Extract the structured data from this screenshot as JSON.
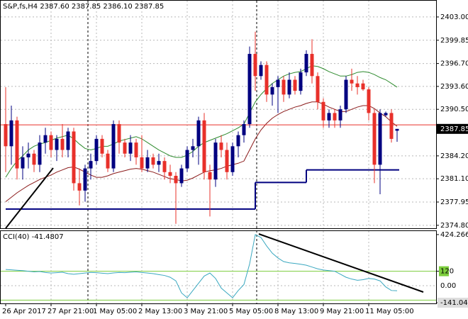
{
  "chart_data": [
    {
      "type": "candlestick",
      "title": "S&P,fs,H4  2387.60 2387.85 2386.10 2387.85",
      "categories": [
        "26 Apr 2017",
        null,
        null,
        null,
        null,
        null,
        null,
        null,
        "27 Apr 21:00",
        null,
        null,
        null,
        null,
        null,
        null,
        null,
        "1 May 05:00",
        null,
        null,
        null,
        null,
        null,
        null,
        null,
        "2 May 13:00",
        null,
        null,
        null,
        null,
        null,
        null,
        null,
        "3 May 21:00",
        null,
        null,
        null,
        null,
        null,
        null,
        null,
        "5 May 05:00",
        null,
        null,
        null,
        null,
        null,
        null,
        null,
        "8 May 13:00",
        null,
        null,
        null,
        null,
        null,
        null,
        null,
        "9 May 21:00",
        null,
        null,
        null,
        null,
        null,
        null,
        null,
        "11 May 05:00",
        null,
        null,
        null,
        null,
        null
      ],
      "open": [
        2388.5,
        2385.5,
        2389,
        2382.5,
        2384,
        2384.5,
        2383,
        2386,
        2387,
        2385,
        2386.5,
        2385,
        2387.5,
        2380.5,
        2379.5,
        2382.5,
        2383.5,
        2386.5,
        2384.5,
        2382.5,
        2388.5,
        2386,
        2384.5,
        2386,
        2384,
        2382.5,
        2384,
        2383,
        2383.5,
        2382,
        2381.5,
        2380.5,
        2382.5,
        2385,
        2385.5,
        2389,
        2382,
        2381,
        2386,
        2385,
        2382,
        2385.5,
        2387,
        2388.5,
        2398,
        2395,
        2396.5,
        2392.5,
        2393.5,
        2394.5,
        2392.5,
        2394.5,
        2393,
        2395.5,
        2398,
        2395,
        2391.5,
        2389,
        2390,
        2389,
        2390.5,
        2394.5,
        2394,
        2394,
        2393.2,
        2390,
        2383,
        2389.7,
        2390,
        2387.6
      ],
      "high": [
        2393.5,
        2391,
        2389.5,
        2385.5,
        2386,
        2385,
        2387,
        2388,
        2387.5,
        2387,
        2388.5,
        2388,
        2388,
        2382.5,
        2383,
        2384.5,
        2387,
        2387,
        2385,
        2389,
        2389,
        2386.5,
        2387,
        2386.5,
        2387,
        2385,
        2384.5,
        2384.5,
        2384,
        2383,
        2382,
        2383,
        2385.5,
        2386.5,
        2389.5,
        2390,
        2383,
        2386.5,
        2387,
        2386,
        2386,
        2387.5,
        2389,
        2399,
        2401,
        2397,
        2397,
        2394,
        2395,
        2395,
        2395.5,
        2395,
        2396,
        2398.5,
        2400,
        2395.5,
        2392,
        2390.5,
        2390.5,
        2391,
        2395,
        2396,
        2395,
        2394.5,
        2393.5,
        2390.5,
        2390.5,
        2390.2,
        2390.5,
        2387.85
      ],
      "low": [
        2382,
        2383,
        2381,
        2381,
        2382.5,
        2382,
        2382,
        2384.5,
        2384,
        2383.5,
        2384,
        2384,
        2379.5,
        2377.5,
        2378,
        2381,
        2383,
        2384,
        2382,
        2382,
        2384.5,
        2384,
        2383.5,
        2383,
        2382,
        2382,
        2382.5,
        2382,
        2381,
        2380.5,
        2375,
        2380,
        2382,
        2384,
        2383,
        2381,
        2376,
        2380,
        2384,
        2381,
        2381.5,
        2384,
        2386,
        2388,
        2393,
        2394.5,
        2391.5,
        2391,
        2390,
        2391.5,
        2392,
        2392.5,
        2392.5,
        2395,
        2394,
        2390.5,
        2388,
        2388,
        2388,
        2388,
        2390,
        2393,
        2392.5,
        2393,
        2389,
        2380.5,
        2379,
        2389.5,
        2386,
        2386.1
      ],
      "close": [
        2385.5,
        2389,
        2382.5,
        2384,
        2384.5,
        2383,
        2386,
        2387,
        2385,
        2386.5,
        2385,
        2387.5,
        2380.5,
        2379.5,
        2382.5,
        2383.5,
        2386.5,
        2384.5,
        2382.5,
        2388.5,
        2386,
        2384.5,
        2386,
        2384,
        2382.5,
        2384,
        2383,
        2383.5,
        2382,
        2381.5,
        2380.5,
        2382.5,
        2385,
        2385.5,
        2389,
        2382,
        2381,
        2386,
        2385,
        2382,
        2385.5,
        2387,
        2388.5,
        2398,
        2395,
        2396.5,
        2392.5,
        2393.5,
        2394.5,
        2392.5,
        2394.5,
        2393,
        2395.5,
        2398,
        2395,
        2391.5,
        2389,
        2390,
        2389,
        2390.5,
        2394.5,
        2394,
        2393.5,
        2393.2,
        2390,
        2383,
        2390,
        2390,
        2386.5,
        2387.85
      ],
      "up_color": "#000080",
      "down_color": "#e8302a",
      "lines": [
        {
          "color": "#2e8b2e",
          "values": [
            2381.3,
            2382.5,
            2383.5,
            2384.2,
            2385,
            2385.5,
            2385.8,
            2386,
            2386.3,
            2386.6,
            2386.8,
            2387,
            2386.5,
            2385.8,
            2385.2,
            2385,
            2385.2,
            2385.5,
            2385.5,
            2385.8,
            2386.2,
            2386.4,
            2386.6,
            2386.8,
            2386.5,
            2386,
            2385.5,
            2385,
            2384.6,
            2384.2,
            2384,
            2384,
            2384.3,
            2384.8,
            2385.5,
            2386,
            2386.3,
            2386.6,
            2386.9,
            2387.2,
            2387.6,
            2388,
            2388.5,
            2390,
            2391.5,
            2392.5,
            2393.3,
            2394,
            2394.5,
            2395,
            2395.3,
            2395.5,
            2395.6,
            2396,
            2396.4,
            2396.3,
            2396,
            2395.6,
            2395.3,
            2395,
            2395,
            2395.2,
            2395.5,
            2395.6,
            2395.5,
            2395.2,
            2394.8,
            2394.5,
            2394,
            2393.5
          ]
        },
        {
          "color": "#8b1a1a",
          "values": [
            2378,
            2378.6,
            2379.2,
            2379.7,
            2380.2,
            2380.6,
            2381,
            2381.3,
            2381.6,
            2382,
            2382.3,
            2382.6,
            2382.7,
            2382.4,
            2382,
            2381.6,
            2381.3,
            2381.3,
            2381.5,
            2381.8,
            2382,
            2382.2,
            2382.4,
            2382.5,
            2382.4,
            2382.2,
            2382,
            2381.7,
            2381.4,
            2381.1,
            2381,
            2380.8,
            2380.9,
            2381.2,
            2381.6,
            2382,
            2382.2,
            2382.3,
            2382.5,
            2382.8,
            2383,
            2383.2,
            2383.5,
            2385,
            2386.5,
            2387.7,
            2388.6,
            2389.3,
            2389.8,
            2390.2,
            2390.5,
            2390.8,
            2391,
            2391.3,
            2391.5,
            2391.5,
            2391.2,
            2390.8,
            2390.5,
            2390.2,
            2390.2,
            2390.5,
            2390.8,
            2391,
            2391,
            2390.6,
            2390,
            2389.5,
            2388.8,
            2388.2
          ]
        },
        {
          "color": "#000080",
          "step": true,
          "values": [
            2377,
            2377,
            2377,
            2377,
            2377,
            2377,
            2377,
            2377,
            2377,
            2377,
            2377,
            2377,
            2377,
            2377,
            2377,
            2377,
            2377,
            2377,
            2377,
            2377,
            2377,
            2377,
            2377,
            2377,
            2377,
            2377,
            2377,
            2377,
            2377,
            2377,
            2377,
            2377,
            2377,
            2377,
            2377,
            2377,
            2377,
            2377,
            2377,
            2377,
            2377,
            2377,
            2377,
            2377,
            2380.6,
            2380.6,
            2380.6,
            2380.6,
            2380.6,
            2380.6,
            2380.6,
            2380.6,
            2380.6,
            2382.3,
            2382.3,
            2382.3,
            2382.3,
            2382.3,
            2382.3,
            2382.3,
            2382.3,
            2382.3,
            2382.3,
            2382.3,
            2382.3,
            2382.3,
            2382.3,
            2382.3,
            2382.3,
            2382.3
          ]
        }
      ],
      "ask_line": 2388.4,
      "ask_color": "#e8302a",
      "last_price": 2387.85,
      "ylim": [
        2374.4,
        2405.2
      ],
      "yticks": [
        {
          "value": 2403,
          "label": "2403.00"
        },
        2399.85,
        {
          "value": 2396.7,
          "label": "2396.70"
        },
        {
          "value": 2393.6,
          "label": "2393.60"
        },
        {
          "value": 2390.5,
          "label": "2390.50"
        },
        {
          "value": 2384.2,
          "label": "2384.20"
        },
        {
          "value": 2381.1,
          "label": "2381.10"
        },
        2377.95,
        {
          "value": 2374.8,
          "label": "2374.80"
        }
      ],
      "grid": true
    },
    {
      "type": "line",
      "title": "CCI(40) -41.4807",
      "color": "#3aa8c0",
      "values": [
        135,
        132,
        128,
        125,
        120,
        115,
        118,
        110,
        105,
        108,
        112,
        100,
        95,
        100,
        105,
        110,
        108,
        104,
        100,
        106,
        110,
        108,
        112,
        115,
        110,
        105,
        100,
        92,
        85,
        70,
        40,
        -60,
        -100,
        -40,
        20,
        80,
        105,
        60,
        -20,
        -60,
        -100,
        -40,
        10,
        180,
        424,
        400,
        330,
        270,
        230,
        200,
        190,
        185,
        178,
        170,
        155,
        140,
        130,
        125,
        120,
        95,
        70,
        55,
        45,
        50,
        60,
        55,
        40,
        -10,
        -40,
        -41.4807
      ],
      "ylim": [
        -147,
        459
      ],
      "yticks": [
        424.2662,
        120,
        {
          "value": 0,
          "label": "0.00"
        },
        -141.0421
      ],
      "levels": [
        120,
        -120
      ],
      "level_color": "#7ccd3c",
      "grid": true
    }
  ]
}
